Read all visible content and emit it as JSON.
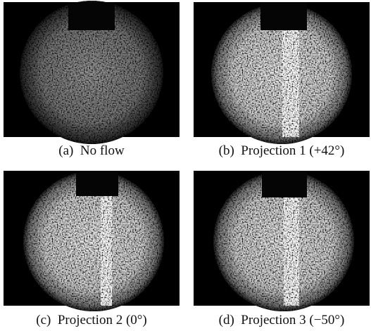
{
  "panels": [
    {
      "caption": "(a)  No flow"
    },
    {
      "caption": "(b)  Projection 1 (+42°)"
    },
    {
      "caption": "(c)  Projection 2 (0°)"
    },
    {
      "caption": "(d)  Projection 3 (−50°)"
    }
  ]
}
